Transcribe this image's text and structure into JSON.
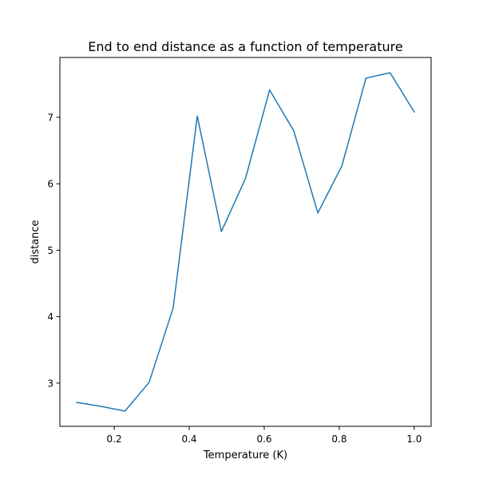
{
  "chart_data": {
    "type": "line",
    "title": "End to end distance as a function of temperature",
    "xlabel": "Temperature (K)",
    "ylabel": "distance",
    "x": [
      0.1,
      0.1643,
      0.2286,
      0.2929,
      0.3571,
      0.4214,
      0.4857,
      0.55,
      0.6143,
      0.6786,
      0.7429,
      0.8071,
      0.8714,
      0.9357,
      1.0
    ],
    "series": [
      {
        "values": [
          2.71,
          2.65,
          2.58,
          3.01,
          4.13,
          7.02,
          5.28,
          6.08,
          7.41,
          6.8,
          5.56,
          6.27,
          7.59,
          7.67,
          7.08
        ],
        "color": "#1f77b4"
      }
    ],
    "xlim": [
      0.055,
      1.045
    ],
    "ylim": [
      2.35,
      7.9
    ],
    "xticks": [
      0.2,
      0.4,
      0.6,
      0.8,
      1.0
    ],
    "xtick_labels": [
      "0.2",
      "0.4",
      "0.6",
      "0.8",
      "1.0"
    ],
    "yticks": [
      3,
      4,
      5,
      6,
      7
    ],
    "ytick_labels": [
      "3",
      "4",
      "5",
      "6",
      "7"
    ],
    "grid": false,
    "legend": "none"
  }
}
